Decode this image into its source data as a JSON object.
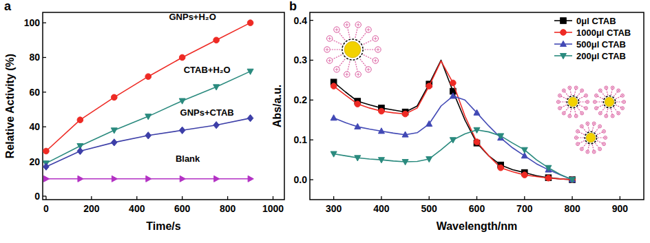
{
  "chart_data": [
    {
      "type": "line",
      "panel_label": "a",
      "x_label": "Time/s",
      "y_label": "Relative Activity (%)",
      "x": [
        0,
        150,
        300,
        450,
        600,
        750,
        900
      ],
      "xlim": [
        -15,
        1050
      ],
      "xticks": [
        0,
        200,
        400,
        600,
        800,
        1000
      ],
      "ylim": [
        -2,
        106
      ],
      "yticks": [
        0,
        20,
        40,
        60,
        80,
        100
      ],
      "grid": false,
      "legend": "inline",
      "series": [
        {
          "name": "GNPs+H₂O",
          "color": "#ee2a24",
          "marker": "circle",
          "values": [
            26,
            44,
            57,
            69,
            80,
            90,
            100
          ]
        },
        {
          "name": "CTAB+H₂O",
          "color": "#2a8a7e",
          "marker": "triangle-down",
          "values": [
            19,
            29,
            38,
            46,
            55,
            63,
            72
          ]
        },
        {
          "name": "GNPs+CTAB",
          "color": "#3d3fa8",
          "marker": "diamond",
          "values": [
            17,
            26,
            31,
            35,
            38,
            41,
            45
          ]
        },
        {
          "name": "Blank",
          "color": "#b331c4",
          "marker": "triangle-right",
          "values": [
            10,
            10,
            10,
            10,
            10,
            10,
            10
          ]
        }
      ]
    },
    {
      "type": "line",
      "panel_label": "b",
      "x_label": "Wavelength/nm",
      "y_label": "Abs/a.u.",
      "x": [
        300,
        325,
        350,
        375,
        400,
        425,
        450,
        475,
        500,
        525,
        550,
        575,
        600,
        625,
        650,
        675,
        700,
        725,
        750,
        775,
        800
      ],
      "xlim": [
        250,
        950
      ],
      "xticks": [
        300,
        400,
        500,
        600,
        700,
        800,
        900
      ],
      "ylim": [
        -0.05,
        0.42
      ],
      "yticks": [
        {
          "value": 0,
          "label": "0.0"
        },
        0.1,
        0.2,
        0.3,
        0.4
      ],
      "grid": false,
      "legend": "top-right",
      "series": [
        {
          "name": "0μl CTAB",
          "color": "#000000",
          "marker": "square",
          "values": [
            0.245,
            0.22,
            0.197,
            0.188,
            0.18,
            0.175,
            0.17,
            0.185,
            0.24,
            0.3,
            0.222,
            0.15,
            0.092,
            0.06,
            0.037,
            0.025,
            0.018,
            0.01,
            0.005,
            0.002,
            0.0
          ]
        },
        {
          "name": "1000μl CTAB",
          "color": "#ee2a24",
          "marker": "circle",
          "values": [
            0.235,
            0.212,
            0.19,
            0.18,
            0.172,
            0.168,
            0.165,
            0.18,
            0.235,
            0.298,
            0.243,
            0.16,
            0.095,
            0.06,
            0.03,
            0.02,
            0.012,
            0.008,
            0.004,
            0.002,
            0.0
          ]
        },
        {
          "name": "500μl CTAB",
          "color": "#4249b5",
          "marker": "triangle-up",
          "values": [
            0.155,
            0.143,
            0.133,
            0.127,
            0.122,
            0.117,
            0.113,
            0.118,
            0.14,
            0.185,
            0.21,
            0.2,
            0.168,
            0.135,
            0.105,
            0.08,
            0.06,
            0.04,
            0.025,
            0.012,
            0.0
          ]
        },
        {
          "name": "200μl CTAB",
          "color": "#2a8a7e",
          "marker": "triangle-down",
          "values": [
            0.065,
            0.06,
            0.055,
            0.052,
            0.05,
            0.047,
            0.045,
            0.046,
            0.052,
            0.075,
            0.1,
            0.115,
            0.125,
            0.12,
            0.11,
            0.092,
            0.075,
            0.05,
            0.03,
            0.013,
            0.0
          ]
        }
      ]
    }
  ]
}
